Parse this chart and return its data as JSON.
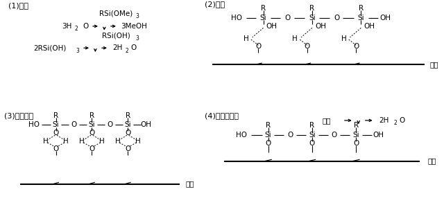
{
  "bg_color": "#ffffff",
  "panel1_title": "(1)水解",
  "panel2_title": "(2)缩合",
  "panel3_title": "(3)形成氢键",
  "panel4_title": "(4)形成共价键",
  "substrate_label": "基材",
  "heat_label": "加热"
}
